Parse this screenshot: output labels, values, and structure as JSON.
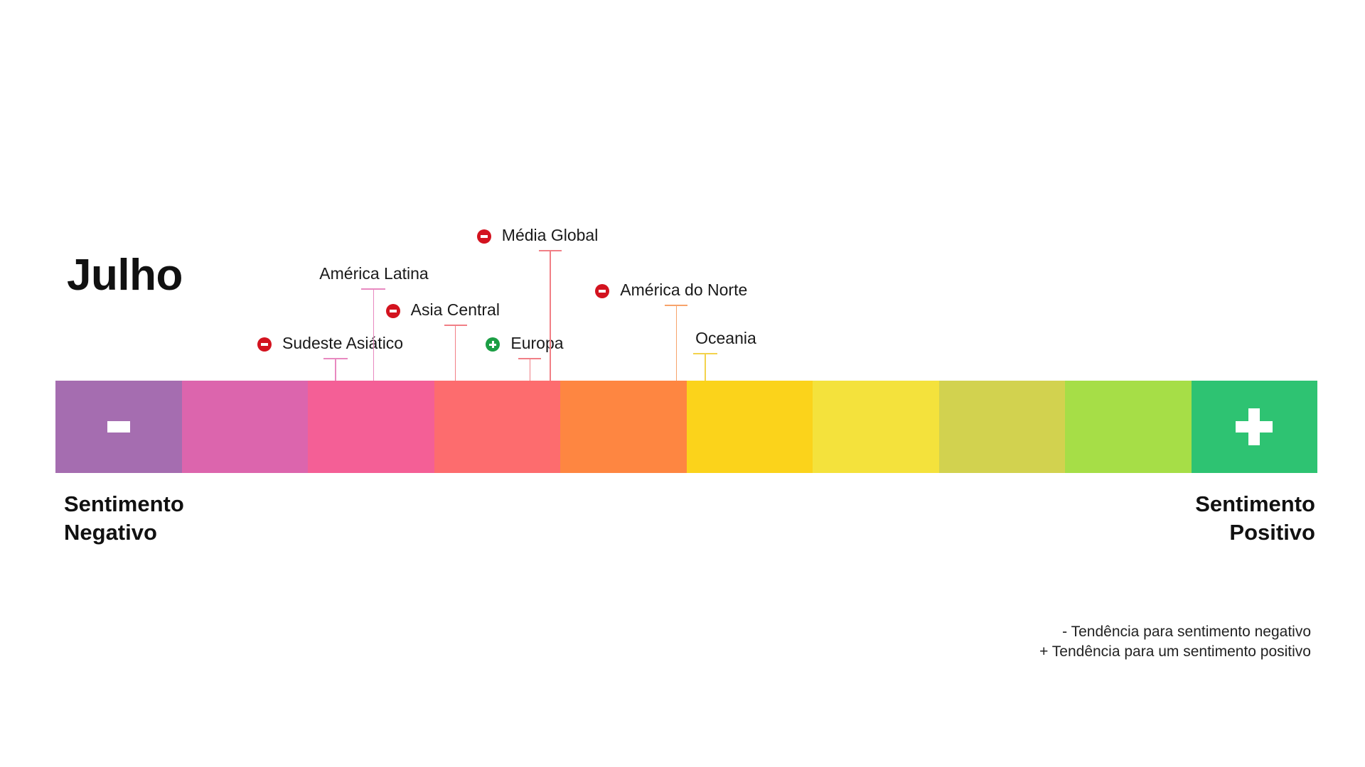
{
  "title": "Julho",
  "scale": {
    "colors": [
      "#a56db0",
      "#dc65ad",
      "#f45f96",
      "#fd6c6e",
      "#fe8641",
      "#fbd31b",
      "#f4e23c",
      "#d2d24f",
      "#a6de47",
      "#2ec372"
    ],
    "negative_symbol": "minus-icon",
    "positive_symbol": "plus-icon"
  },
  "labels": {
    "negative": [
      "Sentimento",
      "Negativo"
    ],
    "positive": [
      "Sentimento",
      "Positivo"
    ]
  },
  "regions": [
    {
      "name": "Sudeste Asiático",
      "trend": "negative",
      "scale_position": 2.22,
      "color": "#e889c0"
    },
    {
      "name": "América Latina",
      "trend": "none",
      "scale_position": 2.52,
      "color": "#e889c0"
    },
    {
      "name": "Asia Central",
      "trend": "negative",
      "scale_position": 3.17,
      "color": "#f17f86"
    },
    {
      "name": "Europa",
      "trend": "positive",
      "scale_position": 3.76,
      "color": "#f17f86"
    },
    {
      "name": "Média Global",
      "trend": "negative",
      "scale_position": 3.92,
      "color": "#f17f86"
    },
    {
      "name": "América do Norte",
      "trend": "negative",
      "scale_position": 4.92,
      "color": "#f7a36b"
    },
    {
      "name": "Oceania",
      "trend": "none",
      "scale_position": 5.15,
      "color": "#f3d24c"
    }
  ],
  "trend_colors": {
    "negative": "#d3131f",
    "positive": "#1b9e44"
  },
  "legend": [
    "- Tendência para sentimento negativo",
    "+ Tendência para um sentimento positivo"
  ]
}
